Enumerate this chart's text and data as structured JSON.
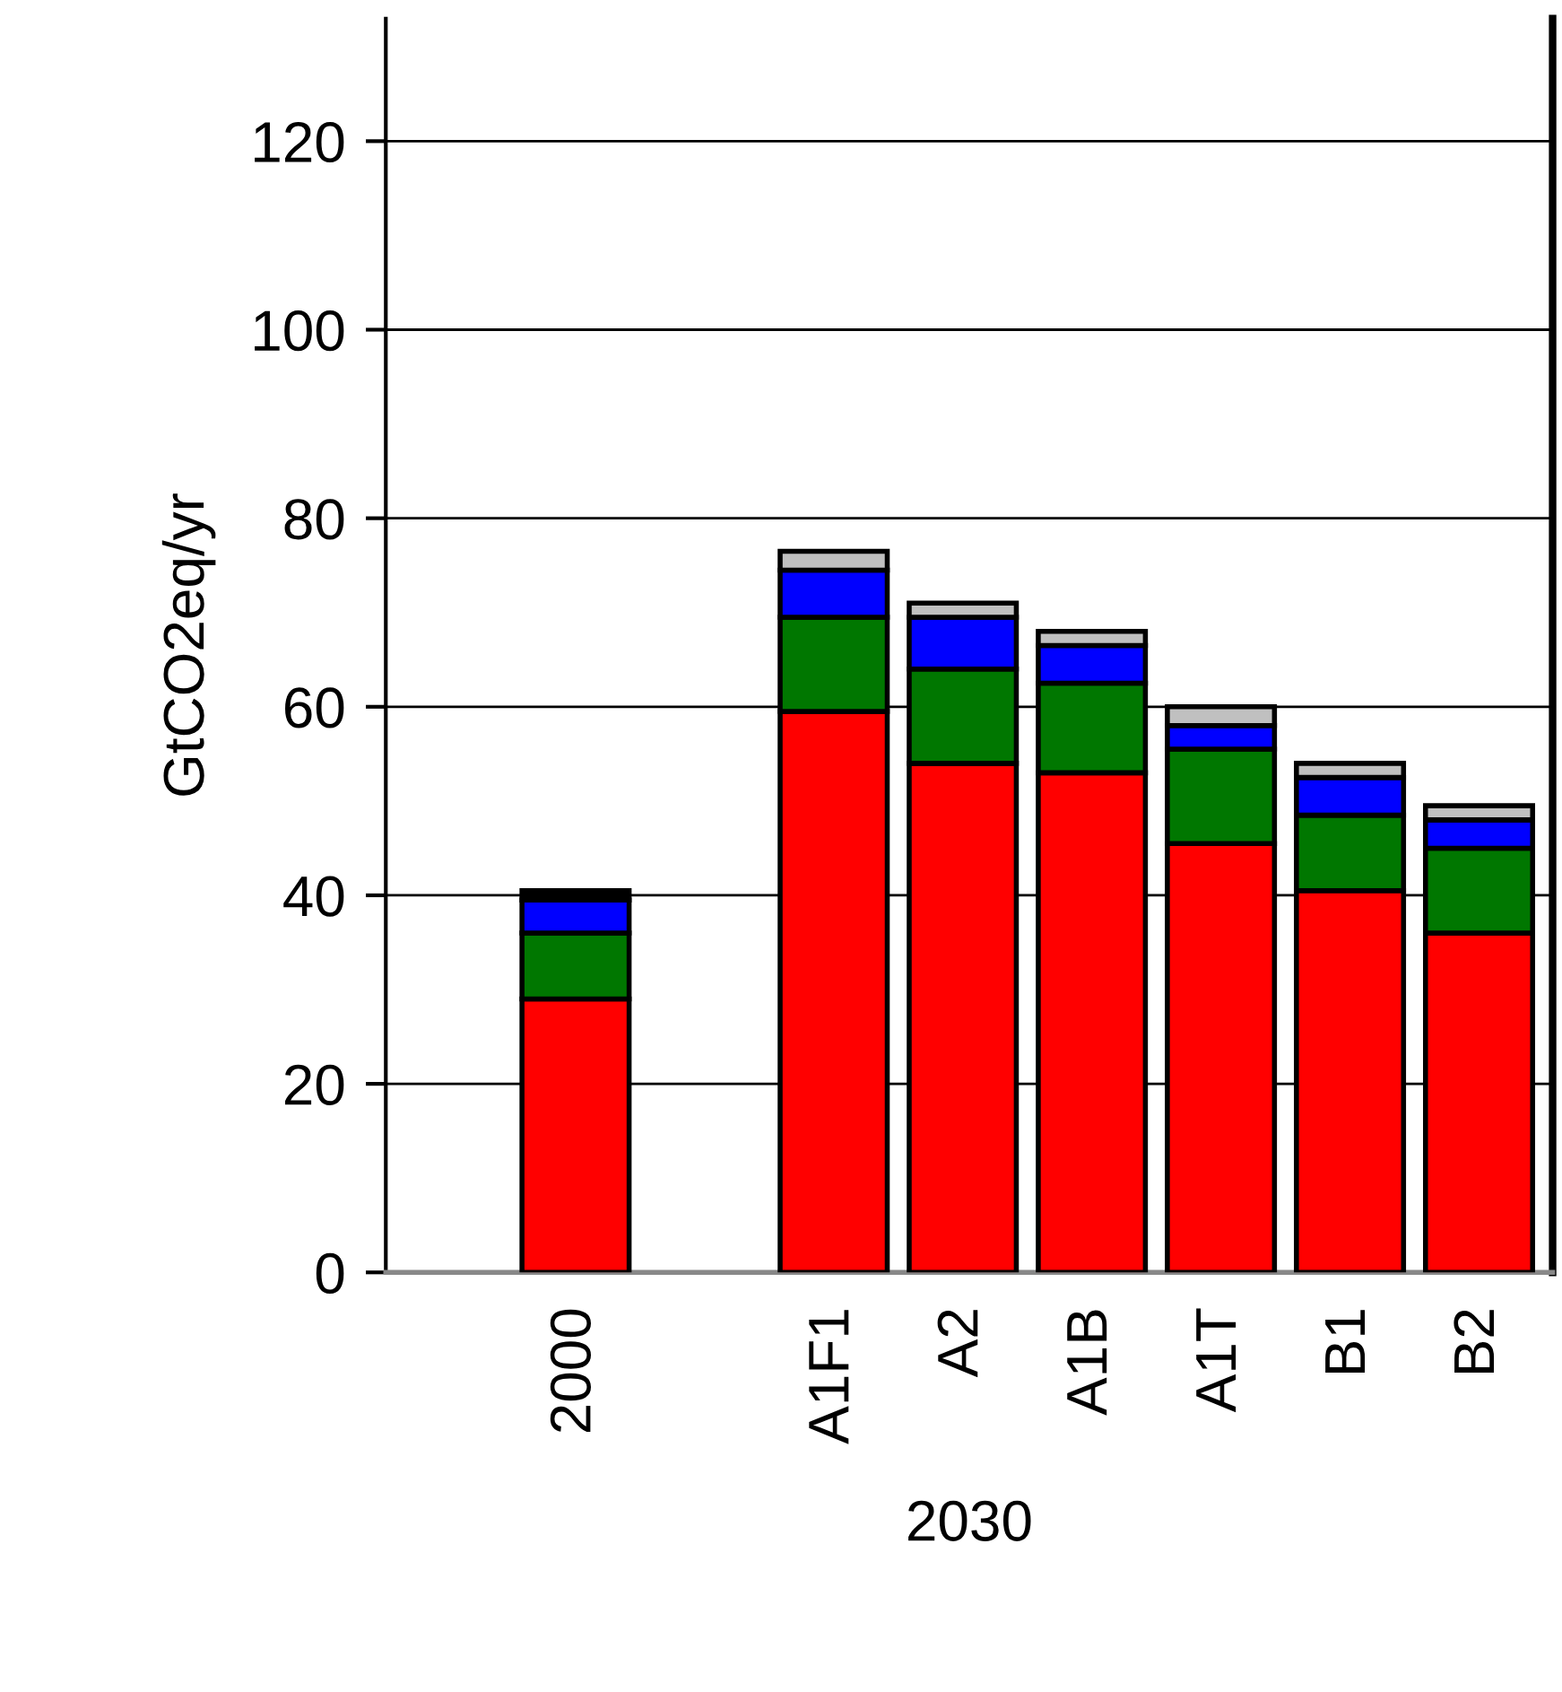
{
  "chart_data": {
    "type": "bar",
    "stacked": true,
    "ylabel": "GtCO2eq/yr",
    "xlabel": "2030",
    "categories": [
      "2000",
      null,
      "A1F1",
      "A2",
      "A1B",
      "A1T",
      "B1",
      "B2"
    ],
    "series": [
      {
        "color": "#ff0000",
        "values": [
          29,
          null,
          59.5,
          54,
          53,
          45.5,
          40.5,
          36
        ]
      },
      {
        "color": "#007700",
        "values": [
          7,
          null,
          10,
          10,
          9.5,
          10,
          8,
          9
        ]
      },
      {
        "color": "#0000ff",
        "values": [
          3.5,
          null,
          5,
          5.5,
          4,
          2.5,
          4,
          3
        ]
      },
      {
        "color": "#000000",
        "values": [
          1,
          null,
          null,
          null,
          null,
          null,
          null,
          null
        ]
      },
      {
        "color": "#c0c0c0",
        "values": [
          null,
          null,
          2,
          1.5,
          1.5,
          2,
          1.5,
          1.5
        ]
      }
    ],
    "ylim": [
      0,
      133
    ],
    "yticks": [
      0,
      20,
      40,
      60,
      80,
      100,
      120
    ],
    "grid": "y"
  }
}
